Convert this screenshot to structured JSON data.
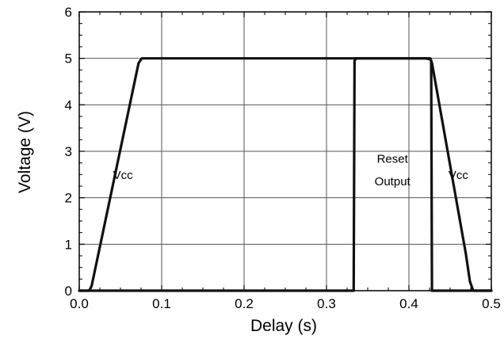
{
  "chart_data": {
    "type": "line",
    "title": "",
    "xlabel": "Delay (s)",
    "ylabel": "Voltage (V)",
    "xlim": [
      0.0,
      0.5
    ],
    "ylim": [
      0,
      6
    ],
    "x_ticks": [
      0.0,
      0.1,
      0.2,
      0.3,
      0.4,
      0.5
    ],
    "x_tick_labels": [
      "0.0",
      "0.1",
      "0.2",
      "0.3",
      "0.4",
      "0.5"
    ],
    "y_ticks": [
      0,
      1,
      2,
      3,
      4,
      5,
      6
    ],
    "y_tick_labels": [
      "0",
      "1",
      "2",
      "3",
      "4",
      "5",
      "6"
    ],
    "grid": true,
    "legend": "none",
    "line_color": "#111111",
    "series": [
      {
        "label_ref": "vcc",
        "x": [
          0.0,
          0.012,
          0.015,
          0.072,
          0.076,
          0.42,
          0.426,
          0.428,
          0.469,
          0.474,
          0.478,
          0.5
        ],
        "y": [
          0,
          0,
          0.1,
          4.9,
          5.0,
          5.0,
          4.98,
          4.9,
          0.8,
          0.2,
          0.0,
          0.0
        ]
      },
      {
        "label_ref": "reset_output",
        "x": [
          0.0,
          0.333,
          0.334,
          0.336,
          0.426,
          0.427,
          0.428,
          0.5
        ],
        "y": [
          0,
          0,
          4.95,
          5.0,
          5.0,
          4.95,
          0,
          0
        ]
      }
    ],
    "annotations": [
      {
        "id": "vcc_rise",
        "text": "Vcc",
        "x": 0.053,
        "y": 2.4
      },
      {
        "id": "reset_output_1",
        "text": "Reset",
        "x": 0.38,
        "y": 2.75
      },
      {
        "id": "reset_output_2",
        "text": "Output",
        "x": 0.38,
        "y": 2.27
      },
      {
        "id": "vcc_fall",
        "text": "Vcc",
        "x": 0.46,
        "y": 2.4
      }
    ]
  }
}
